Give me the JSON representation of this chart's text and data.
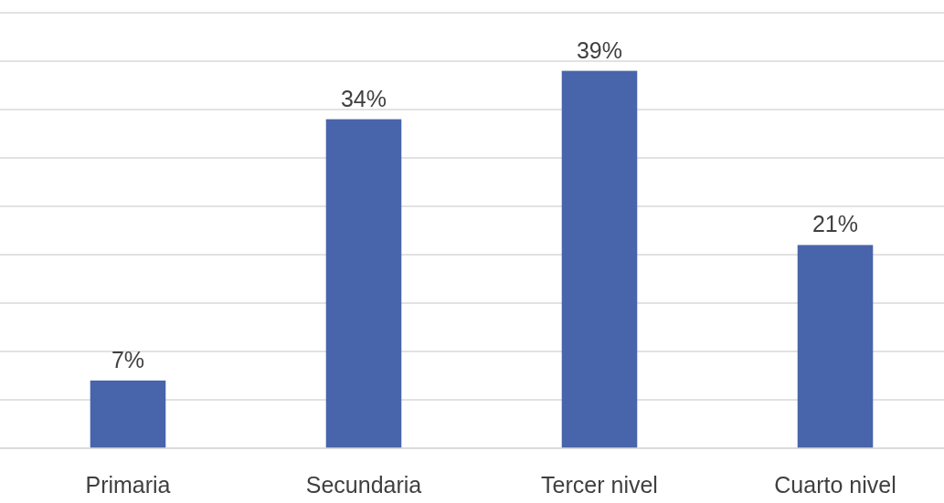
{
  "chart_data": {
    "type": "bar",
    "categories": [
      "Primaria",
      "Secundaria",
      "Tercer nivel",
      "Cuarto nivel"
    ],
    "values": [
      7,
      34,
      39,
      21
    ],
    "value_labels": [
      "7%",
      "34%",
      "39%",
      "21%"
    ],
    "color": "#4864aa",
    "ylim": [
      0,
      45
    ],
    "yticks": [
      {
        "value": 0,
        "label": null
      },
      {
        "value": 5,
        "label": null
      },
      {
        "value": 10,
        "label": null
      },
      {
        "value": 15,
        "label": null
      },
      {
        "value": 20,
        "label": null
      },
      {
        "value": 25,
        "label": null
      },
      {
        "value": 30,
        "label": null
      },
      {
        "value": 35,
        "label": null
      },
      {
        "value": 40,
        "label": null
      },
      {
        "value": 45,
        "label": null
      }
    ],
    "grid": "y",
    "tick_labels": "x"
  }
}
